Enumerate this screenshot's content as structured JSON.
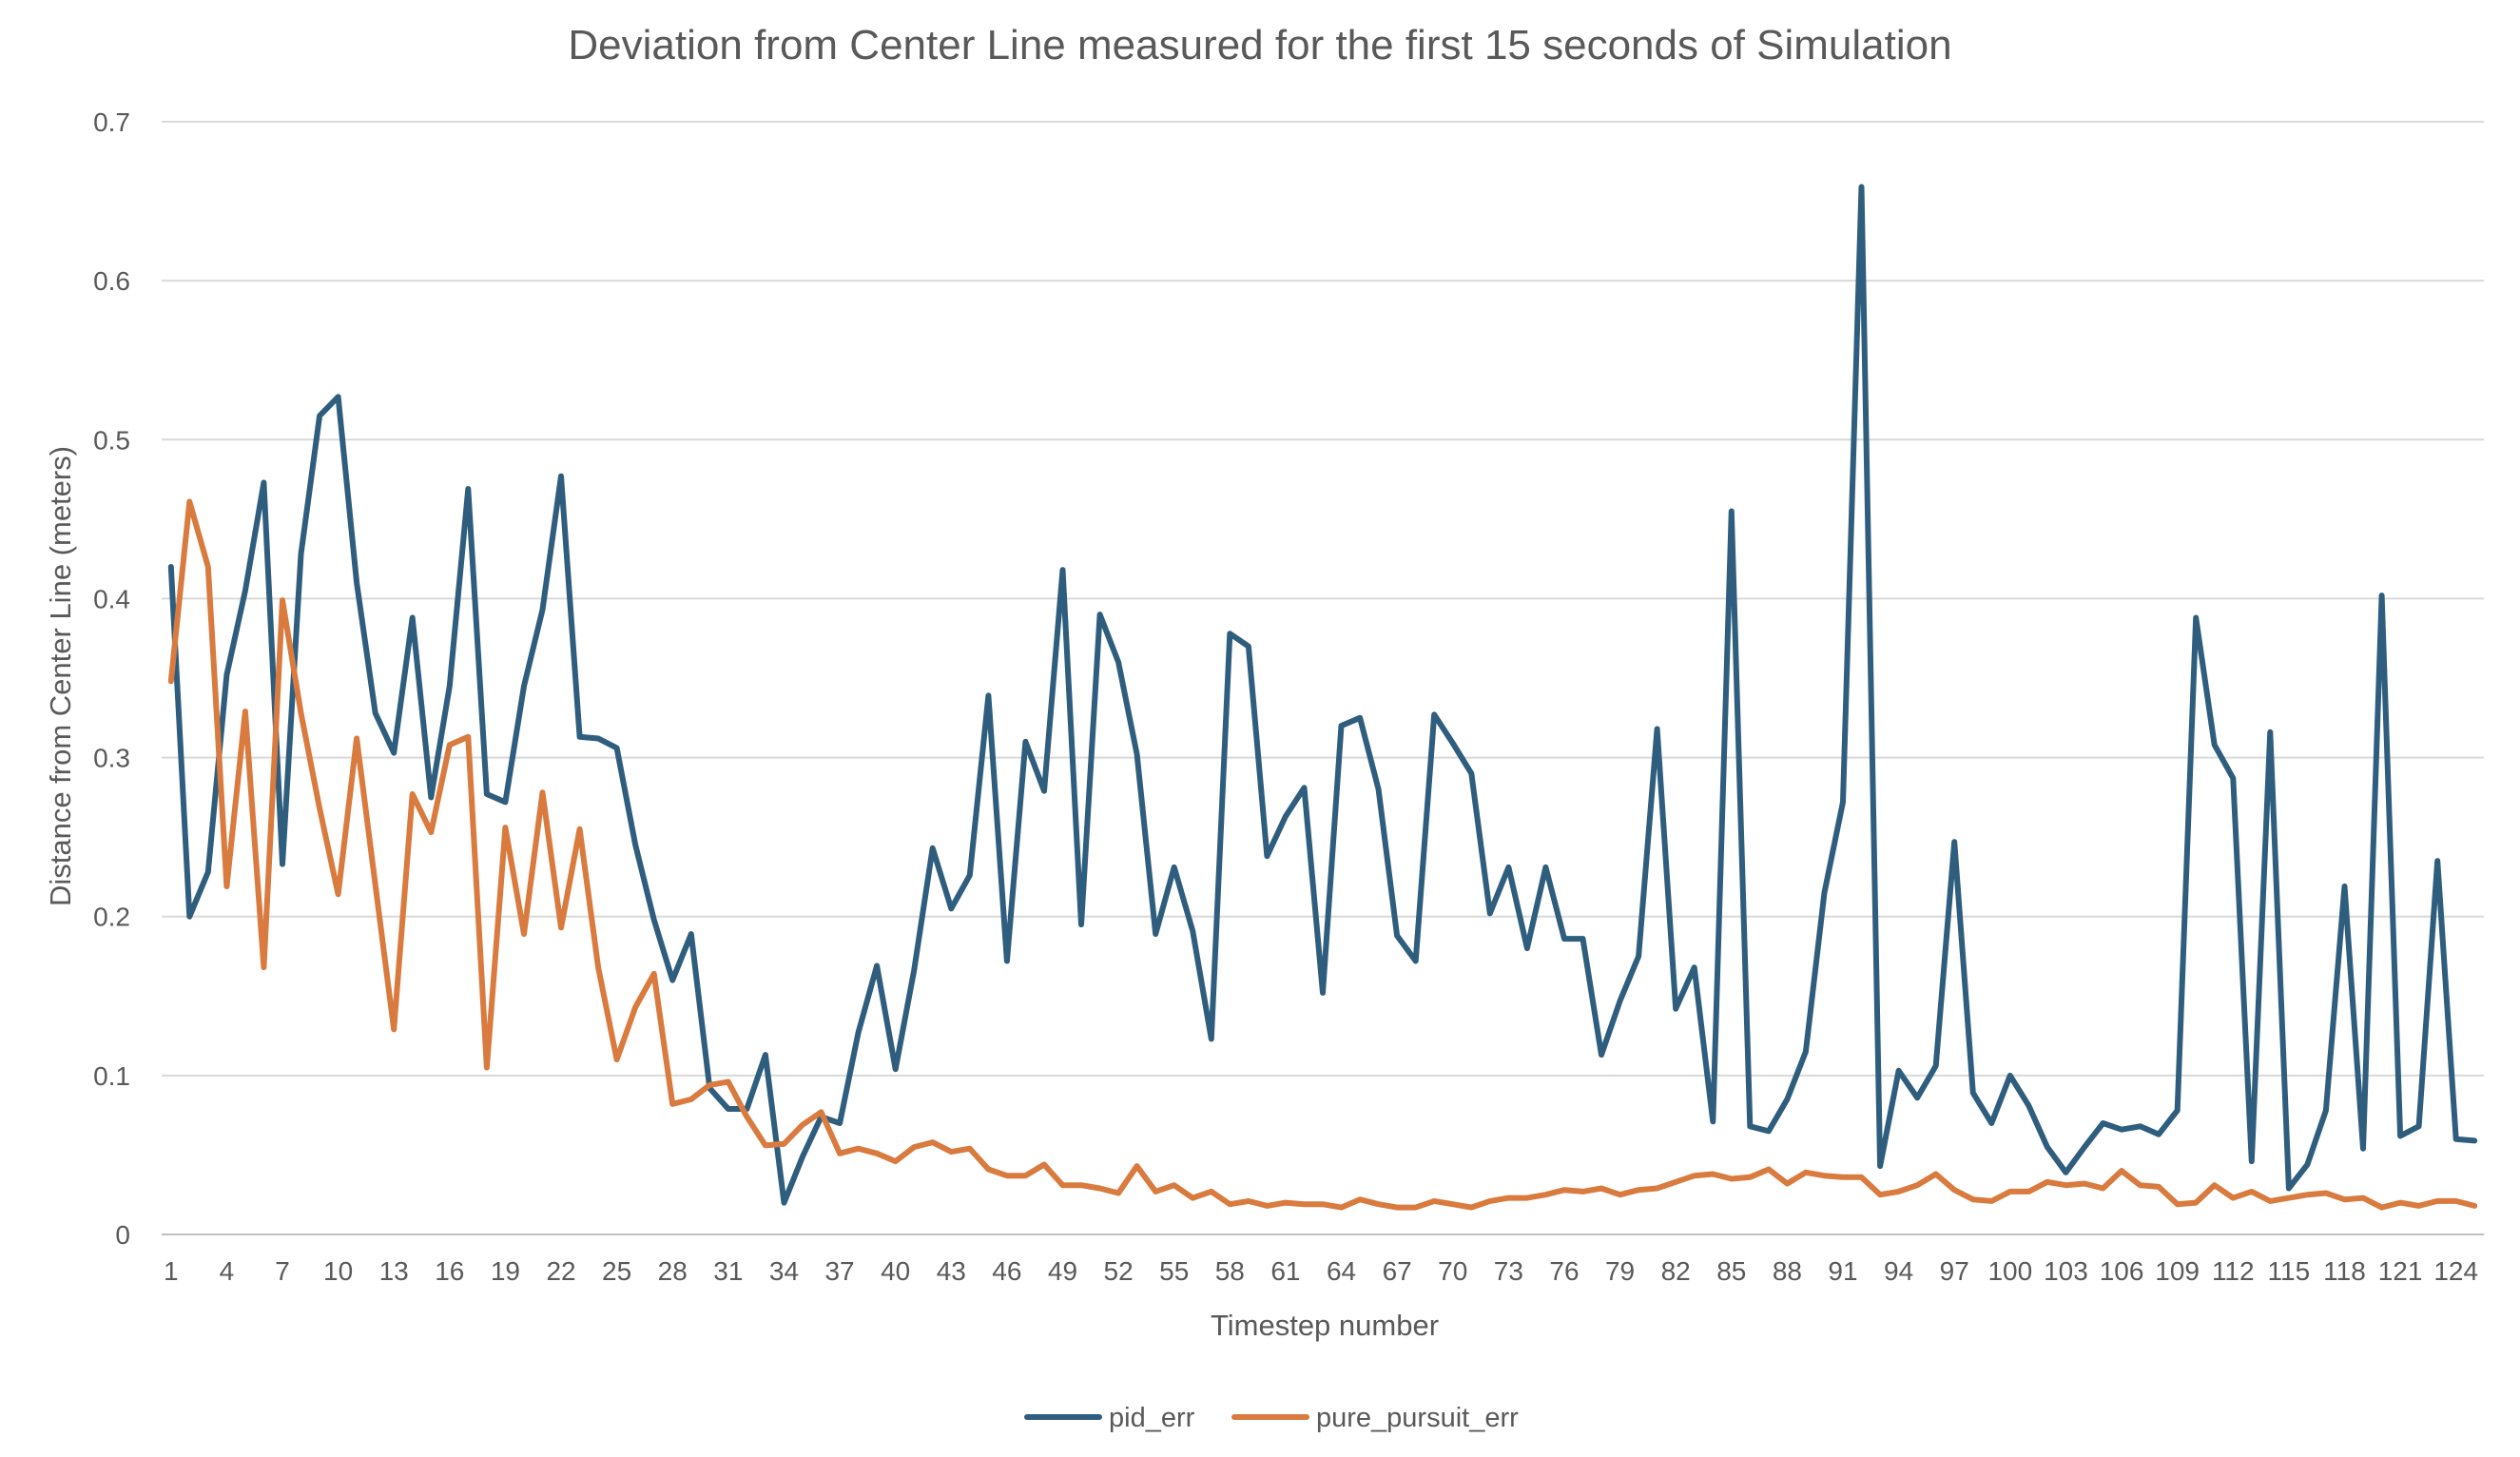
{
  "chart_data": {
    "type": "line",
    "title": "Deviation from Center Line measured for the first 15 seconds of Simulation",
    "xlabel": "Timestep number",
    "ylabel": "Distance from Center Line (meters)",
    "ylim": [
      0,
      0.7
    ],
    "yticks": [
      "0",
      "0.1",
      "0.2",
      "0.3",
      "0.4",
      "0.5",
      "0.6",
      "0.7"
    ],
    "xticks": [
      1,
      4,
      7,
      10,
      13,
      16,
      19,
      22,
      25,
      28,
      31,
      34,
      37,
      40,
      43,
      46,
      49,
      52,
      55,
      58,
      61,
      64,
      67,
      70,
      73,
      76,
      79,
      82,
      85,
      88,
      91,
      94,
      97,
      100,
      103,
      106,
      109,
      112,
      115,
      118,
      121,
      124
    ],
    "x_start": 1,
    "x_end": 125,
    "grid": true,
    "legend": "bottom",
    "series": [
      {
        "name": "pid_err",
        "color": "#2e5d7e",
        "values": [
          0.42,
          0.2,
          0.228,
          0.352,
          0.405,
          0.473,
          0.233,
          0.428,
          0.515,
          0.527,
          0.41,
          0.328,
          0.303,
          0.388,
          0.275,
          0.345,
          0.469,
          0.277,
          0.272,
          0.345,
          0.393,
          0.477,
          0.313,
          0.312,
          0.306,
          0.245,
          0.198,
          0.16,
          0.189,
          0.092,
          0.079,
          0.079,
          0.113,
          0.02,
          0.049,
          0.074,
          0.07,
          0.127,
          0.169,
          0.104,
          0.166,
          0.243,
          0.205,
          0.226,
          0.339,
          0.172,
          0.31,
          0.279,
          0.418,
          0.195,
          0.39,
          0.36,
          0.302,
          0.189,
          0.231,
          0.191,
          0.123,
          0.378,
          0.37,
          0.238,
          0.263,
          0.281,
          0.152,
          0.32,
          0.325,
          0.28,
          0.188,
          0.172,
          0.327,
          0.309,
          0.29,
          0.202,
          0.231,
          0.18,
          0.231,
          0.186,
          0.186,
          0.113,
          0.147,
          0.175,
          0.318,
          0.142,
          0.168,
          0.071,
          0.455,
          0.068,
          0.065,
          0.085,
          0.115,
          0.215,
          0.272,
          0.659,
          0.043,
          0.103,
          0.086,
          0.106,
          0.247,
          0.089,
          0.07,
          0.1,
          0.081,
          0.055,
          0.039,
          0.055,
          0.07,
          0.066,
          0.068,
          0.063,
          0.078,
          0.388,
          0.308,
          0.287,
          0.046,
          0.316,
          0.029,
          0.044,
          0.078,
          0.219,
          0.054,
          0.402,
          0.062,
          0.068,
          0.235,
          0.06,
          0.059
        ]
      },
      {
        "name": "pure_pursuit_err",
        "color": "#d97a3f",
        "values": [
          0.348,
          0.461,
          0.42,
          0.219,
          0.329,
          0.168,
          0.399,
          0.328,
          0.268,
          0.214,
          0.312,
          0.22,
          0.129,
          0.277,
          0.253,
          0.308,
          0.313,
          0.105,
          0.256,
          0.189,
          0.278,
          0.193,
          0.255,
          0.168,
          0.11,
          0.143,
          0.164,
          0.082,
          0.085,
          0.094,
          0.096,
          0.074,
          0.056,
          0.057,
          0.069,
          0.077,
          0.051,
          0.054,
          0.051,
          0.046,
          0.055,
          0.058,
          0.052,
          0.054,
          0.041,
          0.037,
          0.037,
          0.044,
          0.031,
          0.031,
          0.029,
          0.026,
          0.043,
          0.027,
          0.031,
          0.023,
          0.027,
          0.019,
          0.021,
          0.018,
          0.02,
          0.019,
          0.019,
          0.017,
          0.022,
          0.019,
          0.017,
          0.017,
          0.021,
          0.019,
          0.017,
          0.021,
          0.023,
          0.023,
          0.025,
          0.028,
          0.027,
          0.029,
          0.025,
          0.028,
          0.029,
          0.033,
          0.037,
          0.038,
          0.035,
          0.036,
          0.041,
          0.032,
          0.039,
          0.037,
          0.036,
          0.036,
          0.025,
          0.027,
          0.031,
          0.038,
          0.028,
          0.022,
          0.021,
          0.027,
          0.027,
          0.033,
          0.031,
          0.032,
          0.029,
          0.04,
          0.031,
          0.03,
          0.019,
          0.02,
          0.031,
          0.023,
          0.027,
          0.021,
          0.023,
          0.025,
          0.026,
          0.022,
          0.023,
          0.017,
          0.02,
          0.018,
          0.021,
          0.021,
          0.018
        ]
      }
    ]
  }
}
